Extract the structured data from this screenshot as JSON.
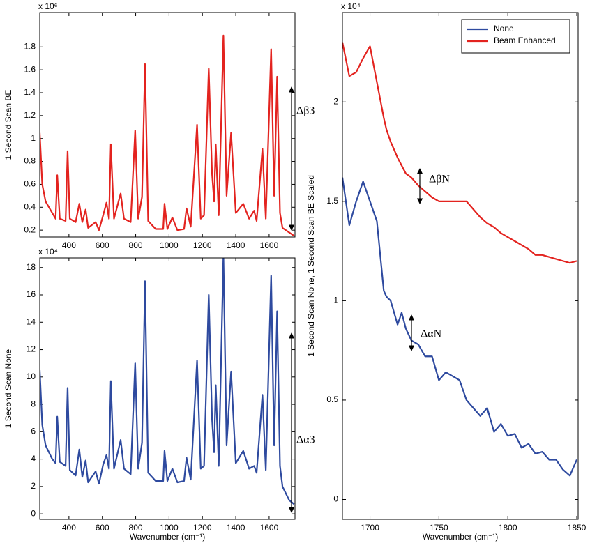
{
  "chart_data": [
    {
      "type": "line",
      "y_exponent_label": "x 10⁶",
      "ylabel": "1 Second Scan BE",
      "color": "#e3231f",
      "x": [
        225,
        240,
        260,
        300,
        320,
        330,
        345,
        380,
        392,
        405,
        440,
        462,
        480,
        500,
        515,
        560,
        580,
        605,
        625,
        640,
        651,
        670,
        710,
        730,
        770,
        797,
        815,
        838,
        856,
        875,
        920,
        965,
        973,
        990,
        1020,
        1050,
        1090,
        1105,
        1130,
        1168,
        1190,
        1210,
        1238,
        1258,
        1270,
        1280,
        1298,
        1326,
        1345,
        1372,
        1400,
        1445,
        1480,
        1510,
        1525,
        1560,
        1580,
        1612,
        1630,
        1648,
        1665,
        1680,
        1720,
        1750
      ],
      "values": [
        1.05,
        0.6,
        0.45,
        0.35,
        0.3,
        0.68,
        0.3,
        0.28,
        0.89,
        0.3,
        0.27,
        0.43,
        0.27,
        0.38,
        0.22,
        0.27,
        0.2,
        0.33,
        0.44,
        0.3,
        0.95,
        0.3,
        0.52,
        0.3,
        0.27,
        1.07,
        0.3,
        0.49,
        1.65,
        0.28,
        0.21,
        0.21,
        0.43,
        0.21,
        0.31,
        0.2,
        0.21,
        0.39,
        0.23,
        1.12,
        0.3,
        0.33,
        1.61,
        0.69,
        0.45,
        0.95,
        0.33,
        1.9,
        0.5,
        1.05,
        0.35,
        0.43,
        0.3,
        0.37,
        0.28,
        0.91,
        0.3,
        1.78,
        0.5,
        1.54,
        0.35,
        0.22,
        0.18,
        0.15
      ],
      "xlim": [
        225,
        1755
      ],
      "xticks": [
        400,
        600,
        800,
        1000,
        1200,
        1400,
        1600
      ],
      "ylim": [
        0.14,
        2.1
      ],
      "yticks": [
        0.2,
        0.4,
        0.6,
        0.8,
        1,
        1.2,
        1.4,
        1.6,
        1.8
      ],
      "annotations": [
        {
          "text": "Δβ3"
        }
      ]
    },
    {
      "type": "line",
      "y_exponent_label": "x 10⁴",
      "ylabel": "1 Second Scan None",
      "xlabel": "Wavenumber (cm⁻¹)",
      "color": "#2e4a9f",
      "x": [
        225,
        240,
        260,
        300,
        320,
        330,
        345,
        380,
        392,
        405,
        440,
        462,
        480,
        500,
        515,
        560,
        580,
        605,
        625,
        640,
        651,
        670,
        710,
        730,
        770,
        797,
        815,
        838,
        856,
        875,
        920,
        965,
        973,
        990,
        1020,
        1050,
        1090,
        1105,
        1130,
        1168,
        1190,
        1210,
        1238,
        1258,
        1270,
        1280,
        1298,
        1326,
        1345,
        1372,
        1400,
        1445,
        1480,
        1510,
        1525,
        1560,
        1580,
        1612,
        1630,
        1648,
        1665,
        1680,
        1720,
        1750
      ],
      "values": [
        10.5,
        6.5,
        5,
        4,
        3.7,
        7.1,
        3.8,
        3.5,
        9.2,
        3.2,
        2.8,
        4.7,
        2.7,
        3.9,
        2.3,
        3.1,
        2.2,
        3.6,
        4.3,
        3.3,
        9.7,
        3.3,
        5.4,
        3.3,
        2.9,
        11,
        3.3,
        5.2,
        17,
        3,
        2.4,
        2.4,
        4.6,
        2.4,
        3.3,
        2.3,
        2.4,
        4.1,
        2.5,
        11.2,
        3.3,
        3.5,
        16,
        6.9,
        4.5,
        9.4,
        3.5,
        18.9,
        5,
        10.4,
        3.7,
        4.6,
        3.3,
        3.5,
        3,
        8.7,
        3.2,
        17.4,
        5,
        14.8,
        3.5,
        2,
        1,
        0.7
      ],
      "xlim": [
        225,
        1755
      ],
      "xticks": [
        400,
        600,
        800,
        1000,
        1200,
        1400,
        1600
      ],
      "ylim": [
        -0.4,
        18.7
      ],
      "yticks": [
        0,
        2,
        4,
        6,
        8,
        10,
        12,
        14,
        16,
        18
      ],
      "annotations": [
        {
          "text": "Δα3"
        }
      ]
    },
    {
      "type": "line",
      "y_exponent_label": "x 10⁴",
      "ylabel": "1 Second Scan None, 1 Second Scan BE Scaled",
      "xlabel": "Wavenumber (cm⁻¹)",
      "legend": "northeast",
      "x": [
        1680,
        1685,
        1690,
        1695,
        1700,
        1705,
        1710,
        1712,
        1715,
        1720,
        1723,
        1726,
        1730,
        1735,
        1740,
        1745,
        1750,
        1755,
        1760,
        1765,
        1770,
        1775,
        1780,
        1785,
        1790,
        1795,
        1800,
        1805,
        1810,
        1815,
        1820,
        1825,
        1830,
        1835,
        1840,
        1845,
        1850
      ],
      "series": [
        {
          "name": "None",
          "color": "#2e4a9f",
          "values": [
            1.62,
            1.38,
            1.5,
            1.6,
            1.5,
            1.4,
            1.05,
            1.02,
            1.0,
            0.88,
            0.94,
            0.86,
            0.8,
            0.78,
            0.72,
            0.72,
            0.6,
            0.64,
            0.62,
            0.6,
            0.5,
            0.46,
            0.42,
            0.46,
            0.34,
            0.38,
            0.32,
            0.33,
            0.26,
            0.28,
            0.23,
            0.24,
            0.2,
            0.2,
            0.15,
            0.12,
            0.2
          ]
        },
        {
          "name": "Beam Enhanced",
          "color": "#e3231f",
          "values": [
            2.3,
            2.13,
            2.15,
            2.22,
            2.28,
            2.1,
            1.92,
            1.86,
            1.8,
            1.72,
            1.68,
            1.64,
            1.62,
            1.58,
            1.55,
            1.52,
            1.5,
            1.5,
            1.5,
            1.5,
            1.5,
            1.46,
            1.42,
            1.39,
            1.37,
            1.34,
            1.32,
            1.3,
            1.28,
            1.26,
            1.23,
            1.23,
            1.22,
            1.21,
            1.2,
            1.19,
            1.2
          ]
        }
      ],
      "xlim": [
        1680,
        1851
      ],
      "xticks": [
        1700,
        1750,
        1800,
        1850
      ],
      "ylim": [
        -0.1,
        2.45
      ],
      "yticks": [
        0,
        0.5,
        1,
        1.5,
        2
      ],
      "annotations": [
        {
          "text": "ΔβN"
        },
        {
          "text": "ΔαN"
        }
      ]
    }
  ]
}
